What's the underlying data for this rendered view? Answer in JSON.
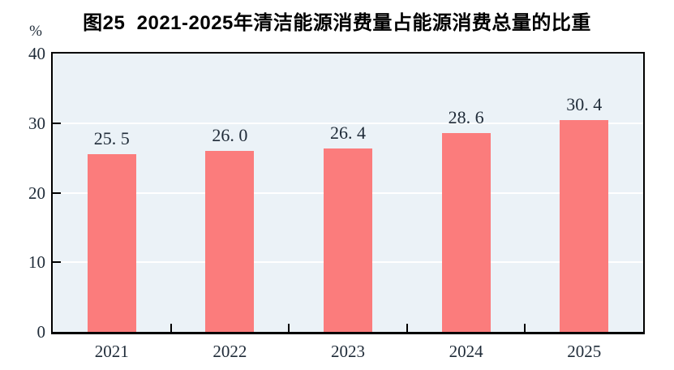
{
  "title": {
    "text": "图25  2021-2025年清洁能源消费量占能源消费总量的比重"
  },
  "y_axis": {
    "unit": "%",
    "tick_labels": [
      "0",
      "10",
      "20",
      "30",
      "40"
    ]
  },
  "x_axis": {
    "tick_labels": [
      "2021",
      "2022",
      "2023",
      "2024",
      "2025"
    ]
  },
  "chart_data": {
    "type": "bar",
    "title": "图25 2021-2025年清洁能源消费量占能源消费总量的比重",
    "categories": [
      "2021",
      "2022",
      "2023",
      "2024",
      "2025"
    ],
    "values": [
      25.5,
      26.0,
      26.4,
      28.6,
      30.4
    ],
    "bar_value_labels": [
      "25. 5",
      "26. 0",
      "26. 4",
      "28. 6",
      "30. 4"
    ],
    "xlabel": "",
    "ylabel": "%",
    "ylim": [
      0,
      40
    ],
    "yticks": [
      0,
      10,
      20,
      30,
      40
    ],
    "grid": true,
    "grid_values": [
      10,
      20,
      30
    ],
    "legend": "none",
    "colors": {
      "bar": "#FB7C7C",
      "plot_background": "#EBF2F7",
      "gridline": "#FFFFFF",
      "axis": "#000000",
      "value_text": "#1F2B38",
      "title_text": "#000000"
    }
  }
}
